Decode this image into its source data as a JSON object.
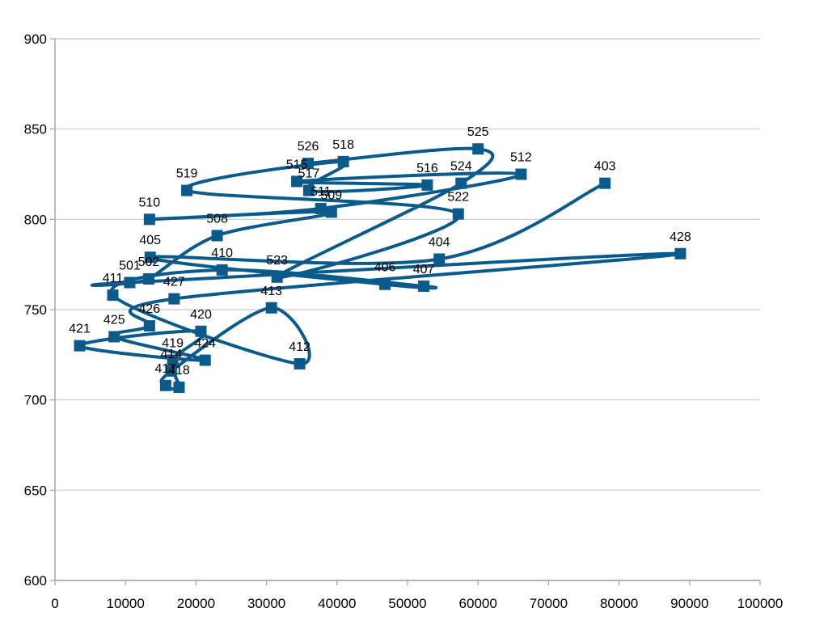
{
  "chart_data": {
    "type": "scatter",
    "title": "",
    "xlabel": "",
    "ylabel": "",
    "xlim": [
      0,
      100000
    ],
    "ylim": [
      600,
      900
    ],
    "x_ticks": [
      0,
      10000,
      20000,
      30000,
      40000,
      50000,
      60000,
      70000,
      80000,
      90000,
      100000
    ],
    "y_ticks": [
      600,
      650,
      700,
      750,
      800,
      850,
      900
    ],
    "x_tick_labels": [
      "0",
      "10000",
      "20000",
      "30000",
      "40000",
      "50000",
      "60000",
      "70000",
      "80000",
      "90000",
      "100000"
    ],
    "y_tick_labels": [
      "600",
      "650",
      "700",
      "750",
      "800",
      "850",
      "900"
    ],
    "grid": "horizontal",
    "legend": "none",
    "line_style": "smoothed",
    "colors": {
      "series": "#0b5a8c",
      "grid": "#c8c8c8",
      "axis": "#a0a0a0"
    },
    "points": [
      {
        "label": "403",
        "x": 78000,
        "y": 820
      },
      {
        "label": "404",
        "x": 54500,
        "y": 778
      },
      {
        "label": "405",
        "x": 13500,
        "y": 779
      },
      {
        "label": "406",
        "x": 46800,
        "y": 764
      },
      {
        "label": "407",
        "x": 52300,
        "y": 763
      },
      {
        "label": "410",
        "x": 23700,
        "y": 772
      },
      {
        "label": "411",
        "x": 8200,
        "y": 758
      },
      {
        "label": "412",
        "x": 34700,
        "y": 720
      },
      {
        "label": "413",
        "x": 30700,
        "y": 751
      },
      {
        "label": "414",
        "x": 16500,
        "y": 716
      },
      {
        "label": "417",
        "x": 15700,
        "y": 708
      },
      {
        "label": "418",
        "x": 17600,
        "y": 707
      },
      {
        "label": "419",
        "x": 16700,
        "y": 722
      },
      {
        "label": "420",
        "x": 20700,
        "y": 738
      },
      {
        "label": "421",
        "x": 3500,
        "y": 730
      },
      {
        "label": "424",
        "x": 21300,
        "y": 722
      },
      {
        "label": "425",
        "x": 8400,
        "y": 735
      },
      {
        "label": "426",
        "x": 13400,
        "y": 741
      },
      {
        "label": "427",
        "x": 16900,
        "y": 756
      },
      {
        "label": "428",
        "x": 88700,
        "y": 781
      },
      {
        "label": "501",
        "x": 10600,
        "y": 765
      },
      {
        "label": "502",
        "x": 13300,
        "y": 767
      },
      {
        "label": "508",
        "x": 23000,
        "y": 791
      },
      {
        "label": "509",
        "x": 39200,
        "y": 804
      },
      {
        "label": "510",
        "x": 13400,
        "y": 800
      },
      {
        "label": "511",
        "x": 37700,
        "y": 806
      },
      {
        "label": "512",
        "x": 66100,
        "y": 825
      },
      {
        "label": "515",
        "x": 34300,
        "y": 821
      },
      {
        "label": "516",
        "x": 52800,
        "y": 819
      },
      {
        "label": "517",
        "x": 36000,
        "y": 816
      },
      {
        "label": "518",
        "x": 40900,
        "y": 832
      },
      {
        "label": "519",
        "x": 18700,
        "y": 816
      },
      {
        "label": "522",
        "x": 57200,
        "y": 803
      },
      {
        "label": "523",
        "x": 31500,
        "y": 768
      },
      {
        "label": "524",
        "x": 57600,
        "y": 820
      },
      {
        "label": "525",
        "x": 60000,
        "y": 839
      },
      {
        "label": "526",
        "x": 35900,
        "y": 831
      }
    ]
  }
}
